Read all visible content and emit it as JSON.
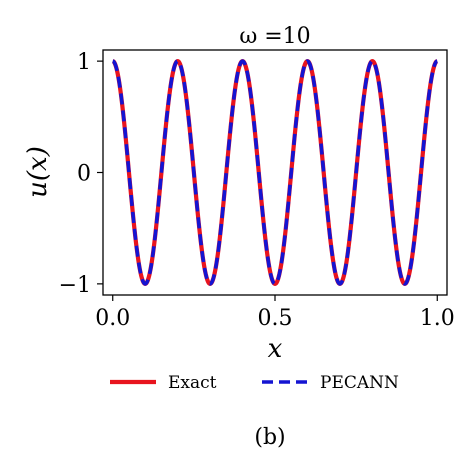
{
  "chart_data": {
    "type": "line",
    "title": "ω =10",
    "xlabel": "x",
    "ylabel": "u(x)",
    "xlim": [
      -0.03,
      1.03
    ],
    "ylim": [
      -1.1,
      1.1
    ],
    "xticks": [
      0.0,
      0.5,
      1.0
    ],
    "xtick_labels": [
      "0.0",
      "0.5",
      "1.0"
    ],
    "yticks": [
      1,
      0,
      -1
    ],
    "ytick_labels": [
      "1",
      "0",
      "−1"
    ],
    "grid": false,
    "legend_placement": "bottom",
    "series": [
      {
        "name": "Exact",
        "style": "solid",
        "color": "#e8141e",
        "function": "cos(10*pi*x)",
        "x_range": [
          0,
          1
        ]
      },
      {
        "name": "PECANN",
        "style": "dashed",
        "color": "#1414d2",
        "function": "cos(10*pi*x)",
        "x_range": [
          0,
          1
        ]
      }
    ]
  },
  "caption": "(b)"
}
